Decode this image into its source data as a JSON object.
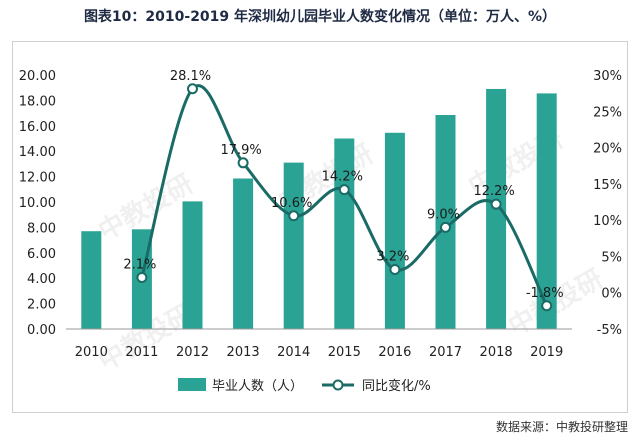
{
  "title": "图表10：2010-2019 年深圳幼儿园毕业人数变化情况（单位：万人、%）",
  "source_note": "数据来源：中教投研整理",
  "watermark": "中教投研",
  "colors": {
    "bar": "#2aa394",
    "line": "#1a6b66",
    "grid": "#d9d9d9",
    "text": "#222222"
  },
  "chart_data": {
    "type": "bar",
    "categories": [
      "2010",
      "2011",
      "2012",
      "2013",
      "2014",
      "2015",
      "2016",
      "2017",
      "2018",
      "2019"
    ],
    "series": [
      {
        "name": "毕业人数（人）",
        "type": "bar",
        "axis": "left",
        "values": [
          7.7,
          7.85,
          10.05,
          11.85,
          13.1,
          15.0,
          15.45,
          16.85,
          18.9,
          18.55
        ]
      },
      {
        "name": "同比变化/%",
        "type": "line",
        "axis": "right",
        "values": [
          null,
          2.1,
          28.1,
          17.9,
          10.6,
          14.2,
          3.2,
          9.0,
          12.2,
          -1.8
        ],
        "labels": [
          "",
          "2.1%",
          "28.1%",
          "17.9%",
          "10.6%",
          "14.2%",
          "3.2%",
          "9.0%",
          "12.2%",
          "-1.8%"
        ]
      }
    ],
    "y_left": {
      "min": 0,
      "max": 20,
      "ticks": [
        "0.00",
        "2.00",
        "4.00",
        "6.00",
        "8.00",
        "10.00",
        "12.00",
        "14.00",
        "16.00",
        "18.00",
        "20.00"
      ]
    },
    "y_right": {
      "min": -5,
      "max": 30,
      "ticks": [
        "-5%",
        "0%",
        "5%",
        "10%",
        "15%",
        "20%",
        "25%",
        "30%"
      ]
    },
    "legend": {
      "position": "bottom",
      "items": [
        "毕业人数（人）",
        "同比变化/%"
      ]
    },
    "grid": false
  }
}
